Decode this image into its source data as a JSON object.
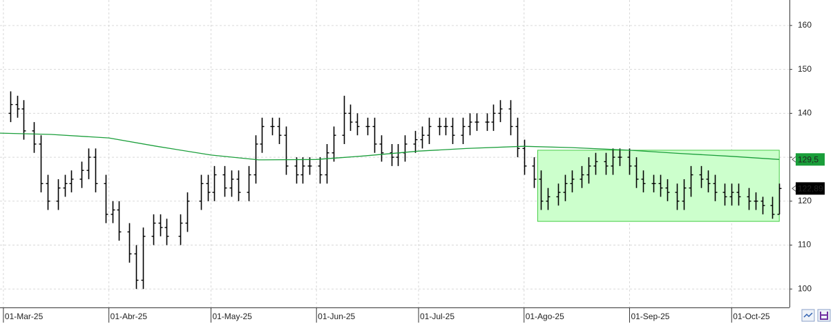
{
  "chart_data": {
    "type": "ohlc",
    "color": "#000000",
    "x": [
      "2025-03-03",
      "2025-03-05",
      "2025-03-07",
      "2025-03-10",
      "2025-03-12",
      "2025-03-14",
      "2025-03-17",
      "2025-03-19",
      "2025-03-21",
      "2025-03-24",
      "2025-03-26",
      "2025-03-28",
      "2025-03-31",
      "2025-04-02",
      "2025-04-04",
      "2025-04-07",
      "2025-04-09",
      "2025-04-11",
      "2025-04-14",
      "2025-04-16",
      "2025-04-18",
      "2025-04-22",
      "2025-04-24",
      "2025-04-28",
      "2025-04-30",
      "2025-05-02",
      "2025-05-05",
      "2025-05-07",
      "2025-05-09",
      "2025-05-12",
      "2025-05-14",
      "2025-05-16",
      "2025-05-19",
      "2025-05-21",
      "2025-05-23",
      "2025-05-26",
      "2025-05-28",
      "2025-05-30",
      "2025-06-02",
      "2025-06-04",
      "2025-06-06",
      "2025-06-09",
      "2025-06-11",
      "2025-06-13",
      "2025-06-16",
      "2025-06-18",
      "2025-06-20",
      "2025-06-23",
      "2025-06-25",
      "2025-06-27",
      "2025-06-30",
      "2025-07-02",
      "2025-07-04",
      "2025-07-07",
      "2025-07-09",
      "2025-07-11",
      "2025-07-14",
      "2025-07-16",
      "2025-07-18",
      "2025-07-21",
      "2025-07-23",
      "2025-07-25",
      "2025-07-28",
      "2025-07-30",
      "2025-08-01",
      "2025-08-04",
      "2025-08-06",
      "2025-08-08",
      "2025-08-11",
      "2025-08-13",
      "2025-08-15",
      "2025-08-18",
      "2025-08-20",
      "2025-08-22",
      "2025-08-25",
      "2025-08-27",
      "2025-08-29",
      "2025-09-01",
      "2025-09-03",
      "2025-09-05",
      "2025-09-08",
      "2025-09-10",
      "2025-09-12",
      "2025-09-15",
      "2025-09-17",
      "2025-09-19",
      "2025-09-22",
      "2025-09-24",
      "2025-09-26",
      "2025-09-29",
      "2025-10-01",
      "2025-10-03",
      "2025-10-06",
      "2025-10-08",
      "2025-10-10",
      "2025-10-13",
      "2025-10-15"
    ],
    "open": [
      140,
      142,
      141,
      136,
      133,
      124,
      120,
      123,
      124,
      125,
      127,
      130,
      124,
      117,
      118,
      113,
      108,
      102,
      112,
      115,
      114,
      112,
      115,
      120,
      124,
      122,
      126,
      123,
      125,
      122,
      126,
      133,
      137,
      137,
      135,
      128,
      126,
      128,
      128,
      126,
      131,
      135,
      140,
      138,
      137,
      137,
      133,
      131,
      130,
      131,
      133,
      134,
      135,
      137,
      137,
      137,
      135,
      137,
      138,
      138,
      138,
      140,
      141,
      137,
      132,
      128,
      125,
      120,
      121,
      122,
      124,
      125,
      126,
      128,
      129,
      128,
      130,
      130,
      128,
      125,
      124,
      124,
      123,
      122,
      120,
      123,
      126,
      125,
      124,
      122,
      121,
      122,
      121,
      120,
      120,
      119,
      117
    ],
    "high": [
      145,
      144,
      143,
      138,
      135,
      126,
      125,
      126,
      127,
      129,
      132,
      132,
      126,
      120,
      120,
      115,
      110,
      114,
      117,
      117,
      116,
      117,
      122,
      126,
      126,
      128,
      128,
      127,
      127,
      128,
      135,
      139,
      139,
      139,
      137,
      130,
      130,
      130,
      130,
      133,
      137,
      144,
      142,
      140,
      139,
      139,
      135,
      133,
      133,
      135,
      136,
      137,
      139,
      139,
      139,
      139,
      139,
      140,
      140,
      140,
      142,
      143,
      143,
      139,
      134,
      130,
      127,
      123,
      124,
      126,
      127,
      128,
      130,
      131,
      131,
      132,
      132,
      132,
      130,
      127,
      126,
      126,
      125,
      124,
      125,
      128,
      128,
      127,
      126,
      124,
      124,
      124,
      123,
      122,
      121,
      121,
      124
    ],
    "low": [
      138,
      139,
      134,
      131,
      122,
      118,
      118,
      121,
      122,
      123,
      125,
      122,
      115,
      115,
      111,
      106,
      100,
      100,
      110,
      112,
      110,
      110,
      113,
      118,
      120,
      120,
      121,
      121,
      120,
      120,
      124,
      131,
      135,
      133,
      126,
      124,
      124,
      126,
      124,
      124,
      129,
      133,
      136,
      135,
      135,
      131,
      129,
      128,
      128,
      129,
      131,
      132,
      133,
      135,
      135,
      133,
      133,
      135,
      136,
      136,
      136,
      138,
      135,
      130,
      126,
      123,
      118,
      118,
      119,
      120,
      122,
      123,
      124,
      126,
      126,
      126,
      128,
      126,
      123,
      122,
      122,
      121,
      120,
      118,
      118,
      121,
      123,
      122,
      120,
      119,
      119,
      119,
      118,
      118,
      117,
      116,
      117
    ],
    "close": [
      142,
      141,
      136,
      133,
      124,
      120,
      123,
      124,
      125,
      127,
      130,
      124,
      117,
      118,
      113,
      108,
      102,
      112,
      115,
      114,
      112,
      115,
      120,
      124,
      122,
      126,
      123,
      125,
      122,
      126,
      133,
      137,
      137,
      135,
      128,
      126,
      128,
      128,
      126,
      131,
      135,
      140,
      138,
      137,
      137,
      133,
      131,
      130,
      131,
      133,
      134,
      135,
      137,
      137,
      137,
      135,
      137,
      138,
      138,
      138,
      140,
      141,
      137,
      132,
      128,
      125,
      120,
      121,
      122,
      124,
      125,
      126,
      128,
      129,
      128,
      130,
      130,
      128,
      125,
      124,
      124,
      123,
      122,
      120,
      123,
      126,
      125,
      124,
      122,
      121,
      122,
      121,
      120,
      120,
      119,
      117,
      122.89
    ],
    "ma": {
      "color": "#1a9e3a",
      "x": [
        "2025-02-28",
        "2025-03-15",
        "2025-04-01",
        "2025-04-15",
        "2025-05-01",
        "2025-05-15",
        "2025-06-01",
        "2025-06-15",
        "2025-07-01",
        "2025-07-15",
        "2025-08-01",
        "2025-08-15",
        "2025-09-01",
        "2025-09-15",
        "2025-10-01",
        "2025-10-15"
      ],
      "values": [
        135.5,
        135.2,
        134.4,
        132.5,
        130.5,
        129.4,
        129.5,
        130.3,
        131.4,
        132.0,
        132.5,
        132.2,
        131.6,
        130.9,
        130.2,
        129.5
      ]
    },
    "range_box": {
      "x": [
        "2025-08-05",
        "2025-10-15"
      ],
      "y": [
        115.4,
        131.6
      ],
      "color": "#ccffcc",
      "border": "#44cc44"
    },
    "ma_label": {
      "value": 129.5,
      "label": "129,5",
      "color": "#1a9e3a"
    },
    "price_label": {
      "value": 122.89,
      "label": "122,89",
      "color": "#000000"
    },
    "xlim": [
      "2025-02-28",
      "2025-10-18"
    ],
    "ylim": [
      95.8,
      165.8
    ],
    "xticks": [
      {
        "value": "2025-03-01",
        "label": "01-Mar-25"
      },
      {
        "value": "2025-04-01",
        "label": "01-Abr-25"
      },
      {
        "value": "2025-05-01",
        "label": "01-May-25"
      },
      {
        "value": "2025-06-01",
        "label": "01-Jun-25"
      },
      {
        "value": "2025-07-01",
        "label": "01-Jul-25"
      },
      {
        "value": "2025-08-01",
        "label": "01-Ago-25"
      },
      {
        "value": "2025-09-01",
        "label": "01-Sep-25"
      },
      {
        "value": "2025-10-01",
        "label": "01-Oct-25"
      }
    ],
    "yticks": [
      100,
      110,
      120,
      130,
      140,
      150,
      160
    ],
    "grid": true
  }
}
